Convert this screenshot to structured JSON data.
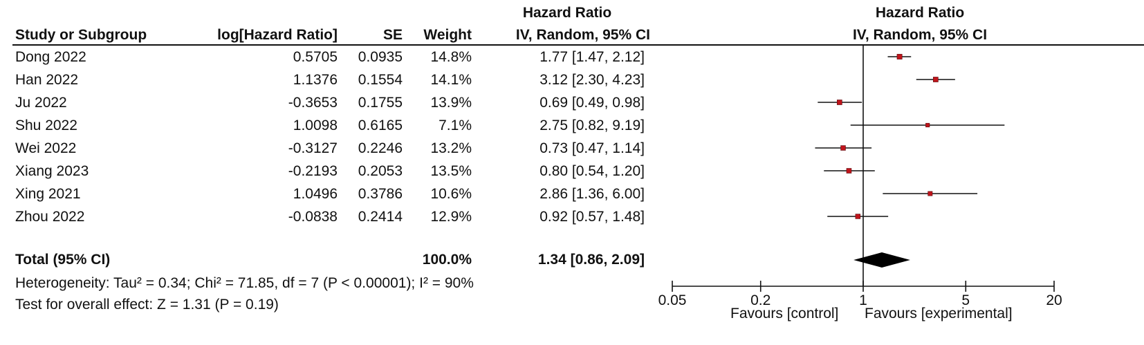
{
  "header": {
    "left_group_title": "Hazard Ratio",
    "right_group_title": "Hazard Ratio",
    "col_study": "Study or Subgroup",
    "col_log": "log[Hazard Ratio]",
    "col_se": "SE",
    "col_weight": "Weight",
    "col_ci": "IV, Random, 95% CI",
    "col_plot": "IV, Random, 95% CI"
  },
  "studies": [
    {
      "name": "Dong 2022",
      "log": "0.5705",
      "se": "0.0935",
      "weight": "14.8%",
      "ci": "1.77 [1.47, 2.12]"
    },
    {
      "name": "Han 2022",
      "log": "1.1376",
      "se": "0.1554",
      "weight": "14.1%",
      "ci": "3.12 [2.30, 4.23]"
    },
    {
      "name": "Ju 2022",
      "log": "-0.3653",
      "se": "0.1755",
      "weight": "13.9%",
      "ci": "0.69 [0.49, 0.98]"
    },
    {
      "name": "Shu 2022",
      "log": "1.0098",
      "se": "0.6165",
      "weight": "7.1%",
      "ci": "2.75 [0.82, 9.19]"
    },
    {
      "name": "Wei 2022",
      "log": "-0.3127",
      "se": "0.2246",
      "weight": "13.2%",
      "ci": "0.73 [0.47, 1.14]"
    },
    {
      "name": "Xiang 2023",
      "log": "-0.2193",
      "se": "0.2053",
      "weight": "13.5%",
      "ci": "0.80 [0.54, 1.20]"
    },
    {
      "name": "Xing 2021",
      "log": "1.0496",
      "se": "0.3786",
      "weight": "10.6%",
      "ci": "2.86 [1.36, 6.00]"
    },
    {
      "name": "Zhou 2022",
      "log": "-0.0838",
      "se": "0.2414",
      "weight": "12.9%",
      "ci": "0.92 [0.57, 1.48]"
    }
  ],
  "total": {
    "label": "Total (95% CI)",
    "weight": "100.0%",
    "ci": "1.34 [0.86, 2.09]"
  },
  "footer": {
    "heterogeneity": "Heterogeneity: Tau² = 0.34; Chi² = 71.85, df = 7 (P < 0.00001); I² = 90%",
    "overall": "Test for overall effect: Z = 1.31 (P = 0.19)"
  },
  "axis": {
    "ticks": [
      "0.05",
      "0.2",
      "1",
      "5",
      "20"
    ],
    "favours_left": "Favours [control]",
    "favours_right": "Favours [experimental]"
  },
  "colors": {
    "marker": "#c0141b",
    "diamond": "#000000",
    "text": "#111111"
  },
  "chart_data": {
    "type": "forest",
    "scale": "log",
    "xlim": [
      0.05,
      20
    ],
    "ticks": [
      0.05,
      0.2,
      1,
      5,
      20
    ],
    "null_value": 1,
    "studies": [
      {
        "name": "Dong 2022",
        "hr": 1.77,
        "lo": 1.47,
        "hi": 2.12,
        "weight": 14.8
      },
      {
        "name": "Han 2022",
        "hr": 3.12,
        "lo": 2.3,
        "hi": 4.23,
        "weight": 14.1
      },
      {
        "name": "Ju 2022",
        "hr": 0.69,
        "lo": 0.49,
        "hi": 0.98,
        "weight": 13.9
      },
      {
        "name": "Shu 2022",
        "hr": 2.75,
        "lo": 0.82,
        "hi": 9.19,
        "weight": 7.1
      },
      {
        "name": "Wei 2022",
        "hr": 0.73,
        "lo": 0.47,
        "hi": 1.14,
        "weight": 13.2
      },
      {
        "name": "Xiang 2023",
        "hr": 0.8,
        "lo": 0.54,
        "hi": 1.2,
        "weight": 13.5
      },
      {
        "name": "Xing 2021",
        "hr": 2.86,
        "lo": 1.36,
        "hi": 6.0,
        "weight": 10.6
      },
      {
        "name": "Zhou 2022",
        "hr": 0.92,
        "lo": 0.57,
        "hi": 1.48,
        "weight": 12.9
      }
    ],
    "pooled": {
      "hr": 1.34,
      "lo": 0.86,
      "hi": 2.09
    }
  }
}
